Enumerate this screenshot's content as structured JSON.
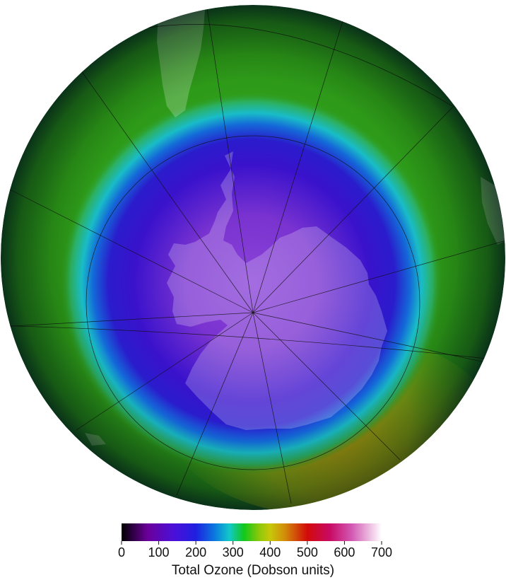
{
  "map": {
    "projection": "orthographic, south polar view",
    "region": "Antarctica and the Southern Ocean",
    "variable": "total column ozone",
    "colors": {
      "ozone_hole_core": "#8a3fd4",
      "ozone_low": "#2a0fc8",
      "ozone_transition": "#1fb8c4",
      "ozone_normal": "#2f9e1a",
      "ozone_high": "#a89a12",
      "land_overlay": "#ffffff",
      "graticule": "#111111"
    }
  },
  "colorbar": {
    "title": "Total Ozone (Dobson units)",
    "min": 0,
    "max": 700,
    "ticks": [
      "0",
      "100",
      "200",
      "300",
      "400",
      "500",
      "600",
      "700"
    ],
    "stops": [
      {
        "value": 0,
        "color": "#000000"
      },
      {
        "value": 70,
        "color": "#6a009a"
      },
      {
        "value": 140,
        "color": "#4c10d8"
      },
      {
        "value": 200,
        "color": "#1f1fe0"
      },
      {
        "value": 250,
        "color": "#0a78e0"
      },
      {
        "value": 290,
        "color": "#12c8c8"
      },
      {
        "value": 330,
        "color": "#12c81a"
      },
      {
        "value": 370,
        "color": "#8cc80a"
      },
      {
        "value": 400,
        "color": "#c8c80a"
      },
      {
        "value": 440,
        "color": "#d28c0a"
      },
      {
        "value": 500,
        "color": "#d20a0a"
      },
      {
        "value": 560,
        "color": "#c80a64"
      },
      {
        "value": 620,
        "color": "#d25ab4"
      },
      {
        "value": 700,
        "color": "#ffffff"
      }
    ]
  }
}
